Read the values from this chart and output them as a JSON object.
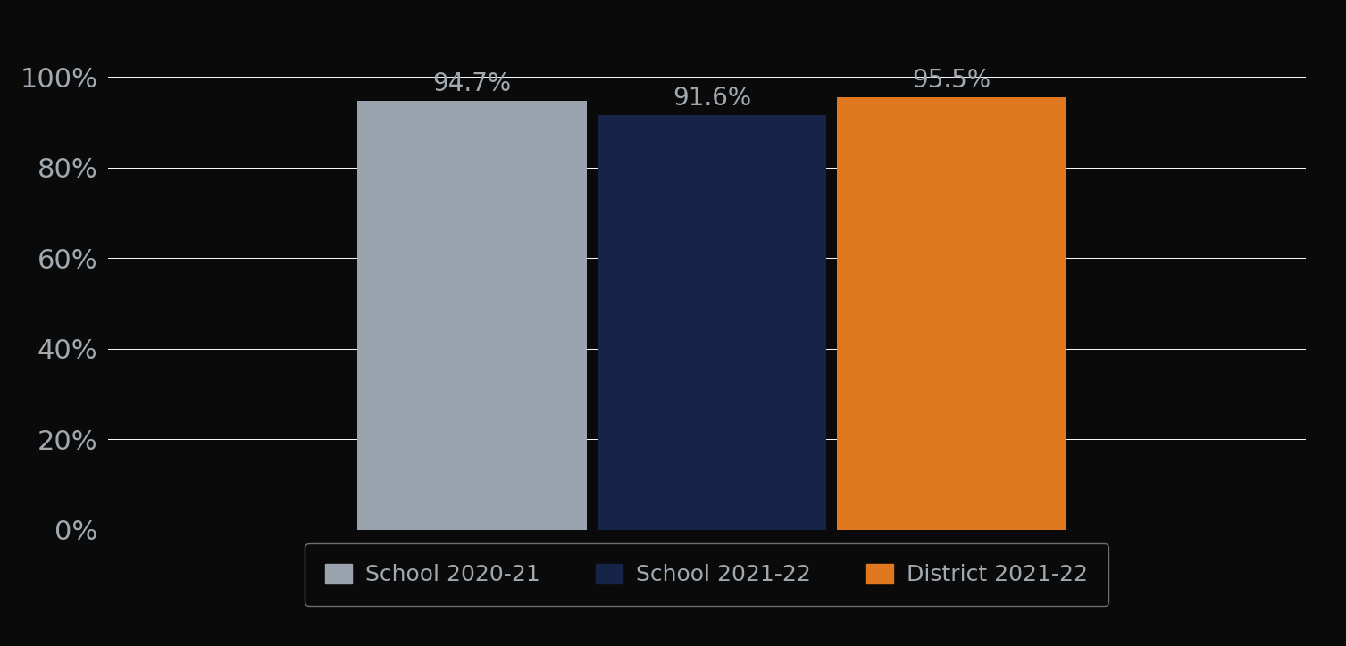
{
  "categories": [
    "School 2020-21",
    "School 2021-22",
    "District 2021-22"
  ],
  "values": [
    94.7,
    91.6,
    95.5
  ],
  "bar_colors": [
    "#9ba3ae",
    "#162447",
    "#e07820"
  ],
  "bar_labels": [
    "94.7%",
    "91.6%",
    "95.5%"
  ],
  "ylim": [
    0,
    107
  ],
  "yticks": [
    0,
    20,
    40,
    60,
    80,
    100
  ],
  "ytick_labels": [
    "0%",
    "20%",
    "40%",
    "60%",
    "80%",
    "100%"
  ],
  "background_color": "#0a0a0a",
  "text_color": "#a0a8b0",
  "grid_color": "#ffffff",
  "label_fontsize": 20,
  "tick_fontsize": 22,
  "legend_fontsize": 18,
  "bar_width": 0.22,
  "x_positions": [
    0.35,
    0.58,
    0.81
  ],
  "xlim": [
    0.0,
    1.15
  ]
}
